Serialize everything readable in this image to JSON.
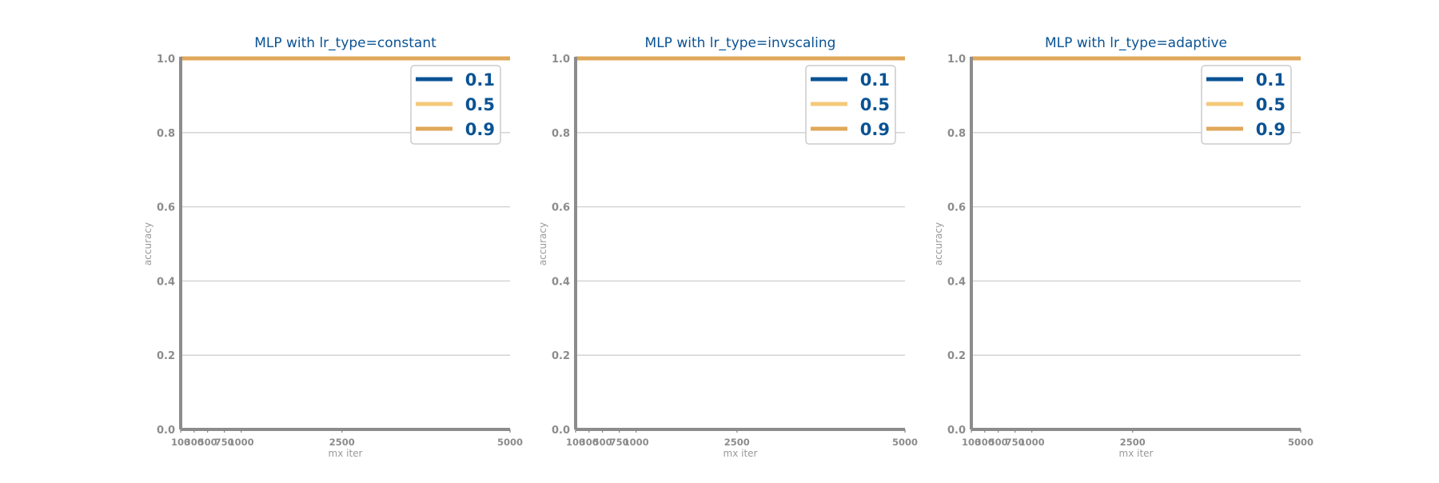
{
  "colors": {
    "axis": "#8c8c8c",
    "grid": "#cfcfcf",
    "title": "#0a5394",
    "legend_text": "#0a5394",
    "series": [
      "#0a5394",
      "#f4c97a",
      "#e0a85a"
    ]
  },
  "chart_data": [
    {
      "type": "line",
      "title": "MLP with lr_type=constant",
      "xlabel": "mx iter",
      "ylabel": "accuracy",
      "x": [
        100,
        300,
        500,
        750,
        1000,
        2500,
        5000
      ],
      "xticks": [
        100,
        300,
        500,
        750,
        1000,
        2500,
        5000
      ],
      "xlim": [
        100,
        5000
      ],
      "ylim": [
        0.0,
        1.0
      ],
      "yticks": [
        "0.0",
        "0.2",
        "0.4",
        "0.6",
        "0.8",
        "1.0"
      ],
      "grid": "horizontal",
      "legend_position": "top-right",
      "series": [
        {
          "name": "0.1",
          "values": [
            1.0,
            1.0,
            1.0,
            1.0,
            1.0,
            1.0,
            1.0
          ]
        },
        {
          "name": "0.5",
          "values": [
            1.0,
            1.0,
            1.0,
            1.0,
            1.0,
            1.0,
            1.0
          ]
        },
        {
          "name": "0.9",
          "values": [
            1.0,
            1.0,
            1.0,
            1.0,
            1.0,
            1.0,
            1.0
          ]
        }
      ]
    },
    {
      "type": "line",
      "title": "MLP with lr_type=invscaling",
      "xlabel": "mx iter",
      "ylabel": "accuracy",
      "x": [
        100,
        300,
        500,
        750,
        1000,
        2500,
        5000
      ],
      "xticks": [
        100,
        300,
        500,
        750,
        1000,
        2500,
        5000
      ],
      "xlim": [
        100,
        5000
      ],
      "ylim": [
        0.0,
        1.0
      ],
      "yticks": [
        "0.0",
        "0.2",
        "0.4",
        "0.6",
        "0.8",
        "1.0"
      ],
      "grid": "horizontal",
      "legend_position": "top-right",
      "series": [
        {
          "name": "0.1",
          "values": [
            1.0,
            1.0,
            1.0,
            1.0,
            1.0,
            1.0,
            1.0
          ]
        },
        {
          "name": "0.5",
          "values": [
            1.0,
            1.0,
            1.0,
            1.0,
            1.0,
            1.0,
            1.0
          ]
        },
        {
          "name": "0.9",
          "values": [
            1.0,
            1.0,
            1.0,
            1.0,
            1.0,
            1.0,
            1.0
          ]
        }
      ]
    },
    {
      "type": "line",
      "title": "MLP with lr_type=adaptive",
      "xlabel": "mx iter",
      "ylabel": "accuracy",
      "x": [
        100,
        300,
        500,
        750,
        1000,
        2500,
        5000
      ],
      "xticks": [
        100,
        300,
        500,
        750,
        1000,
        2500,
        5000
      ],
      "xlim": [
        100,
        5000
      ],
      "ylim": [
        0.0,
        1.0
      ],
      "yticks": [
        "0.0",
        "0.2",
        "0.4",
        "0.6",
        "0.8",
        "1.0"
      ],
      "grid": "horizontal",
      "legend_position": "top-right",
      "series": [
        {
          "name": "0.1",
          "values": [
            1.0,
            1.0,
            1.0,
            1.0,
            1.0,
            1.0,
            1.0
          ]
        },
        {
          "name": "0.5",
          "values": [
            1.0,
            1.0,
            1.0,
            1.0,
            1.0,
            1.0,
            1.0
          ]
        },
        {
          "name": "0.9",
          "values": [
            1.0,
            1.0,
            1.0,
            1.0,
            1.0,
            1.0,
            1.0
          ]
        }
      ]
    }
  ]
}
